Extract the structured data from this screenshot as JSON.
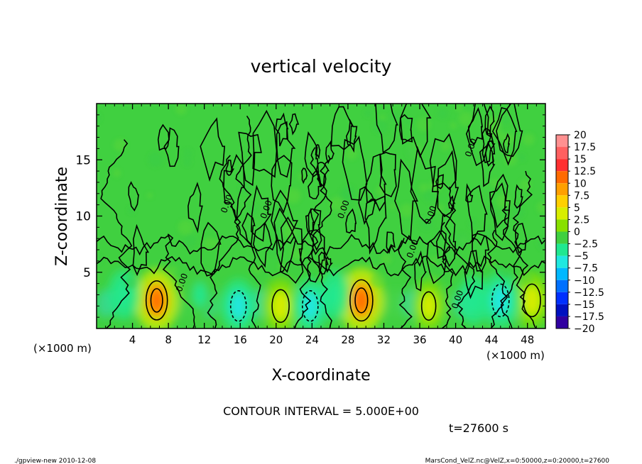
{
  "chart_data": {
    "type": "heatmap",
    "title": "vertical velocity",
    "xlabel": "X-coordinate",
    "ylabel": "Z-coordinate",
    "xlim": [
      0,
      50
    ],
    "ylim": [
      0,
      20
    ],
    "x_ticks": [
      4,
      8,
      12,
      16,
      20,
      24,
      28,
      32,
      36,
      40,
      44,
      48
    ],
    "y_ticks": [
      5,
      10,
      15
    ],
    "x_unit_label": "(×1000 m)",
    "y_unit_label": "(×1000 m)",
    "contour_interval_label": "CONTOUR INTERVAL = 5.000E+00",
    "time_label": "t=27600 s",
    "contour_value_label": "0.00",
    "colorbar": {
      "levels": [
        "20",
        "17.5",
        "15",
        "12.5",
        "10",
        "7.5",
        "5",
        "2.5",
        "0",
        "−2.5",
        "−5",
        "−7.5",
        "−10",
        "−12.5",
        "−15",
        "−17.5",
        "−20"
      ],
      "colors": [
        "#ff9090",
        "#ff6060",
        "#ff3030",
        "#ff6a00",
        "#ffa000",
        "#ffd000",
        "#d8ee00",
        "#88e000",
        "#40d040",
        "#20e890",
        "#20e8e0",
        "#00b8ff",
        "#0070ff",
        "#0030ff",
        "#0010c0",
        "#3000a0",
        "#6000a0"
      ]
    },
    "cells": [
      {
        "x": 6.7,
        "z": 2.5,
        "w": 9,
        "kind": "up"
      },
      {
        "x": 29.5,
        "z": 2.5,
        "w": 10,
        "kind": "up"
      },
      {
        "x": 20.5,
        "z": 2.0,
        "w": 6,
        "kind": "up"
      },
      {
        "x": 37.0,
        "z": 2.0,
        "w": 4,
        "kind": "up"
      },
      {
        "x": 48.5,
        "z": 2.5,
        "w": 6,
        "kind": "up"
      },
      {
        "x": 15.8,
        "z": 2.0,
        "w": -5,
        "kind": "down"
      },
      {
        "x": 23.8,
        "z": 2.0,
        "w": -5,
        "kind": "down"
      },
      {
        "x": 45.0,
        "z": 2.5,
        "w": -6,
        "kind": "down"
      },
      {
        "x": 3.0,
        "z": 3.0,
        "w": -3,
        "kind": "down"
      },
      {
        "x": 11.5,
        "z": 3.0,
        "w": -2,
        "kind": "down"
      },
      {
        "x": 26.5,
        "z": 3.0,
        "w": -3,
        "kind": "down"
      },
      {
        "x": 42.0,
        "z": 2.5,
        "w": -3,
        "kind": "down"
      }
    ]
  },
  "footer": {
    "left": "./gpview-new  2010-12-08",
    "right": "MarsCond_VelZ.nc@VelZ,x=0:50000,z=0:20000,t=27600"
  }
}
